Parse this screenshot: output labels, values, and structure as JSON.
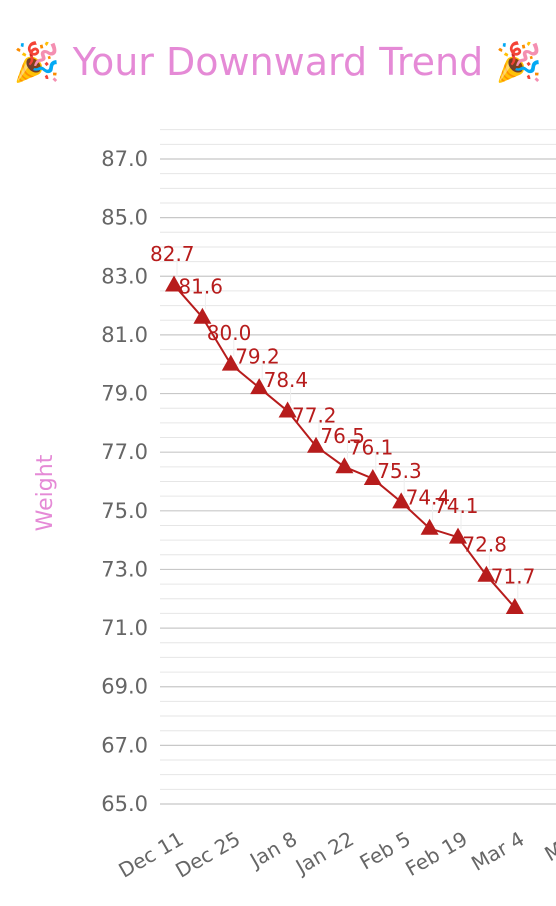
{
  "chart_data": {
    "type": "line",
    "title": "🎉 Your Downward Trend 🎉",
    "ylabel": "Weight",
    "xlabel": "",
    "ylim": [
      65,
      87
    ],
    "y_ticks": [
      "65.0",
      "67.0",
      "69.0",
      "71.0",
      "73.0",
      "75.0",
      "77.0",
      "79.0",
      "81.0",
      "83.0",
      "85.0",
      "87.0"
    ],
    "x_ticks": [
      "Dec 11",
      "Dec 25",
      "Jan 8",
      "Jan 22",
      "Feb 5",
      "Feb 19",
      "Mar 4",
      "Mar"
    ],
    "grid": true,
    "series": [
      {
        "x": [
          "Dec 11",
          "Dec 18",
          "Dec 25",
          "Jan 1",
          "Jan 8",
          "Jan 15",
          "Jan 22",
          "Jan 29",
          "Feb 5",
          "Feb 12",
          "Feb 19",
          "Feb 26",
          "Mar 4"
        ],
        "values": [
          82.7,
          81.6,
          80.0,
          79.2,
          78.4,
          77.2,
          76.5,
          76.1,
          75.3,
          74.4,
          74.1,
          72.8,
          71.7
        ],
        "labels": [
          "82.7",
          "81.6",
          "80.0",
          "79.2",
          "78.4",
          "77.2",
          "76.5",
          "76.1",
          "75.3",
          "74.4",
          "74.1",
          "72.8",
          "71.7"
        ],
        "color": "#b71c1c",
        "marker": "triangle"
      }
    ]
  },
  "colors": {
    "title": "#e58ad6",
    "ylabel": "#e58ad6",
    "tick_text": "#666666",
    "major_grid": "#c8c8c8",
    "minor_grid": "#e6e6e6",
    "series": "#b71c1c"
  }
}
